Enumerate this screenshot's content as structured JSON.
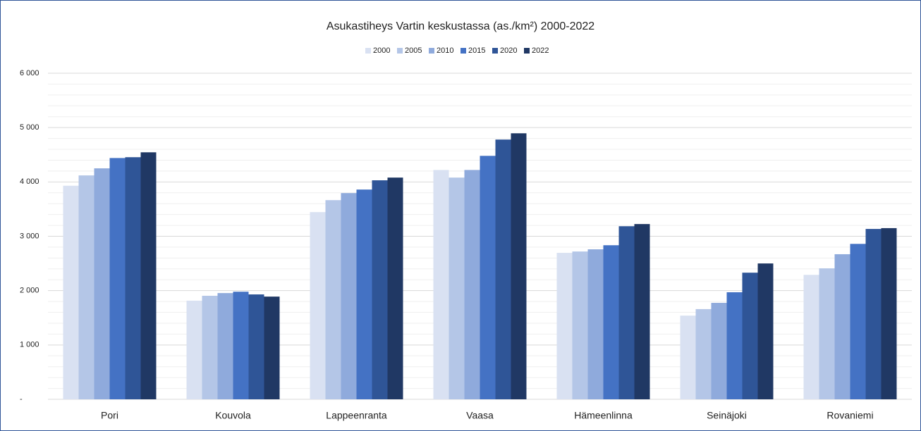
{
  "chart_data": {
    "type": "bar",
    "title": "Asukastiheys Vartin keskustassa (as./km²) 2000-2022",
    "categories": [
      "Pori",
      "Kouvola",
      "Lappeenranta",
      "Vaasa",
      "Hämeenlinna",
      "Seinäjoki",
      "Rovaniemi"
    ],
    "series": [
      {
        "name": "2000",
        "color": "#d9e1f2",
        "values": [
          3930,
          1815,
          3445,
          4220,
          2695,
          1540,
          2290
        ]
      },
      {
        "name": "2005",
        "color": "#b4c6e7",
        "values": [
          4120,
          1905,
          3665,
          4080,
          2720,
          1660,
          2410
        ]
      },
      {
        "name": "2010",
        "color": "#8faadc",
        "values": [
          4250,
          1955,
          3795,
          4220,
          2760,
          1775,
          2670
        ]
      },
      {
        "name": "2015",
        "color": "#4472c4",
        "values": [
          4440,
          1980,
          3860,
          4480,
          2835,
          1970,
          2860
        ]
      },
      {
        "name": "2020",
        "color": "#2f5597",
        "values": [
          4455,
          1930,
          4030,
          4780,
          3185,
          2330,
          3135
        ]
      },
      {
        "name": "2022",
        "color": "#203864",
        "values": [
          4545,
          1890,
          4080,
          4895,
          3225,
          2500,
          3150
        ]
      }
    ],
    "ylim": [
      0,
      6000
    ],
    "yticks": [
      {
        "value": 0,
        "label": "-"
      },
      {
        "value": 1000,
        "label": "1 000"
      },
      {
        "value": 2000,
        "label": "2 000"
      },
      {
        "value": 3000,
        "label": "3 000"
      },
      {
        "value": 4000,
        "label": "4 000"
      },
      {
        "value": 5000,
        "label": "5 000"
      },
      {
        "value": 6000,
        "label": "6 000"
      }
    ],
    "grid": true,
    "legend": "top"
  }
}
